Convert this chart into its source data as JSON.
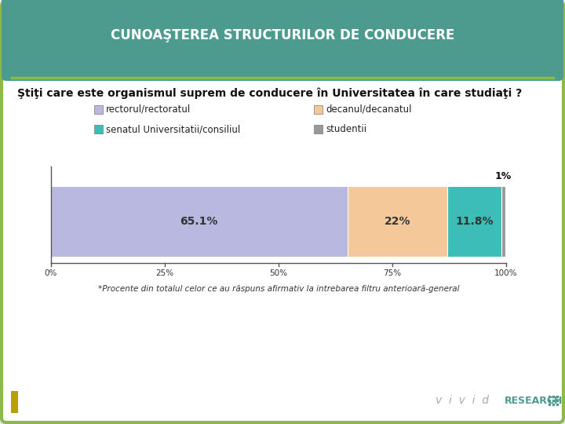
{
  "title": "CUNOAŞTEREA STRUCTURILOR DE CONDUCERE",
  "question": "Ştiţi care este organismul suprem de conducere în Universitatea în care studiaţi ?",
  "segments": [
    65.1,
    22.0,
    11.8,
    1.0
  ],
  "segment_labels": [
    "65.1%",
    "22%",
    "11.8%",
    "1%"
  ],
  "segment_colors": [
    "#b8b8e0",
    "#f5c89a",
    "#3dbdb8",
    "#999999"
  ],
  "legend_labels": [
    "rectorul/rectoratul",
    "decanul/decanatul",
    "senatul Universitatii/consiliul",
    "studentii"
  ],
  "legend_colors": [
    "#b8b8e0",
    "#f5c89a",
    "#3dbdb8",
    "#999999"
  ],
  "footnote": "*Procente din totalul celor ce au răspuns afirmativ la intrebarea filtru anterioară-general",
  "header_bg": "#4d9b8f",
  "header_text_color": "#ffffff",
  "border_color": "#8db84a",
  "bg_color": "#f0f0f0",
  "xticks": [
    "0%",
    "25%",
    "50%",
    "75%",
    "100%"
  ],
  "xtick_vals": [
    0,
    25,
    50,
    75,
    100
  ],
  "title_fontsize": 12,
  "question_fontsize": 10,
  "legend_fontsize": 8.5,
  "bar_label_fontsize": 10,
  "footnote_fontsize": 7.5,
  "vivid_color": "#aaaaaa",
  "research_color": "#4d9b8f",
  "olive_bar_color": "#b8a000"
}
